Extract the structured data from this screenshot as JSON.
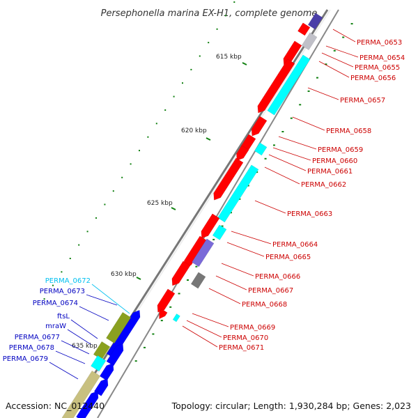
{
  "title": "Persephonella marina EX-H1, complete genome",
  "footer": {
    "accession": "Accession: NC_012440",
    "summary": "Topology: circular; Length: 1,930,284 bp; Genes: 2,023"
  },
  "colors": {
    "red": "#ff0000",
    "cyan": "#00ffff",
    "blue": "#0000ff",
    "olive": "#8aa020",
    "khaki": "#c8c080",
    "slate": "#7a6ad8",
    "darkslate": "#4a3ea8",
    "grey": "#777777",
    "silver": "#c0c0c8",
    "green": "#108010",
    "label_red": "#cc0000",
    "label_blue": "#0000c0",
    "label_cyan": "#00c0f0"
  },
  "ticks": [
    {
      "label": "615 kbp"
    },
    {
      "label": "620 kbp"
    },
    {
      "label": "625 kbp"
    },
    {
      "label": "630 kbp"
    },
    {
      "label": "635 kbp"
    }
  ],
  "right_labels": [
    {
      "text": "PERMA_0653"
    },
    {
      "text": "PERMA_0654"
    },
    {
      "text": "PERMA_0655"
    },
    {
      "text": "PERMA_0656"
    },
    {
      "text": "PERMA_0657"
    },
    {
      "text": "PERMA_0658"
    },
    {
      "text": "PERMA_0659"
    },
    {
      "text": "PERMA_0660"
    },
    {
      "text": "PERMA_0661"
    },
    {
      "text": "PERMA_0662"
    },
    {
      "text": "PERMA_0663"
    },
    {
      "text": "PERMA_0664"
    },
    {
      "text": "PERMA_0665"
    },
    {
      "text": "PERMA_0666"
    },
    {
      "text": "PERMA_0667"
    },
    {
      "text": "PERMA_0668"
    },
    {
      "text": "PERMA_0669"
    },
    {
      "text": "PERMA_0670"
    },
    {
      "text": "PERMA_0671"
    }
  ],
  "left_labels": [
    {
      "text": "PERMA_0672",
      "color": "cyan"
    },
    {
      "text": "PERMA_0673",
      "color": "blue"
    },
    {
      "text": "PERMA_0674",
      "color": "blue"
    },
    {
      "text": "ftsL",
      "color": "blue"
    },
    {
      "text": "mraW",
      "color": "blue"
    },
    {
      "text": "PERMA_0677",
      "color": "blue"
    },
    {
      "text": "PERMA_0678",
      "color": "blue"
    },
    {
      "text": "PERMA_0679",
      "color": "blue"
    }
  ]
}
